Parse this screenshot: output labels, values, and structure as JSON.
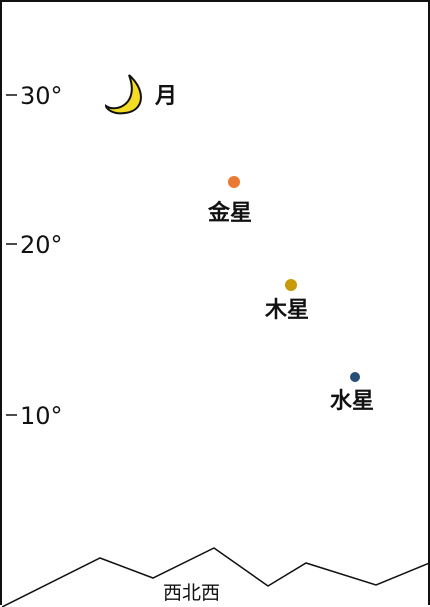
{
  "chart_data": {
    "type": "scatter",
    "y_unit": "°",
    "ylim": [
      0,
      35
    ],
    "ticks": [
      "30°",
      "20°",
      "10°"
    ],
    "bodies": [
      {
        "name": "月",
        "altitude": 30.0,
        "color": "#f2dc1f",
        "kind": "moon"
      },
      {
        "name": "金星",
        "altitude": 24.0,
        "color": "#ea7a32",
        "kind": "planet"
      },
      {
        "name": "木星",
        "altitude": 18.0,
        "color": "#c89a0a",
        "kind": "planet"
      },
      {
        "name": "水星",
        "altitude": 12.5,
        "color": "#264f77",
        "kind": "planet"
      }
    ],
    "horizon_direction": "西北西"
  }
}
